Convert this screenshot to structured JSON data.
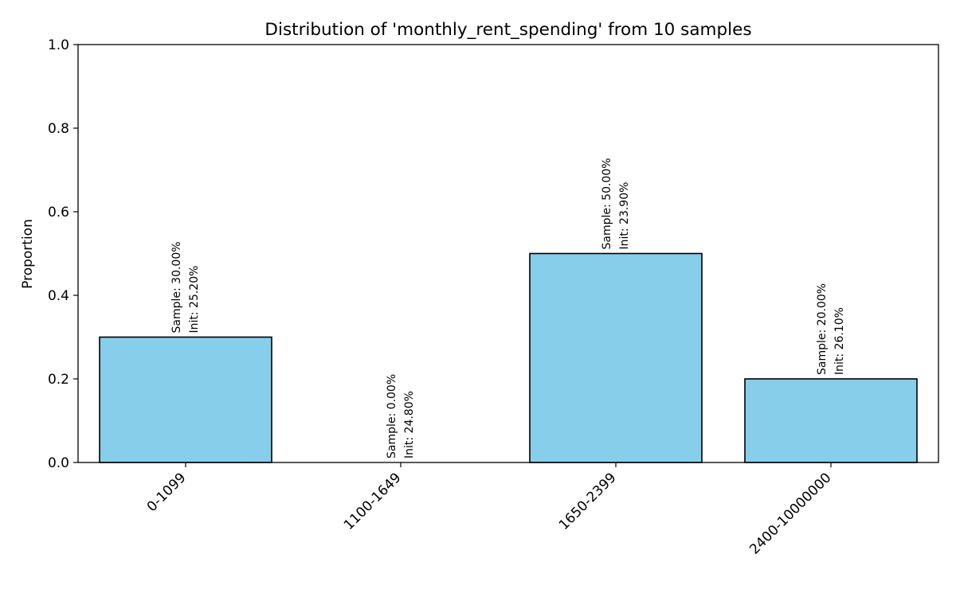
{
  "chart_data": {
    "type": "bar",
    "title": "Distribution of 'monthly_rent_spending' from 10 samples",
    "xlabel": "",
    "ylabel": "Proportion",
    "ylim": [
      0,
      1.0
    ],
    "yticks": [
      "0.0",
      "0.2",
      "0.4",
      "0.6",
      "0.8",
      "1.0"
    ],
    "categories": [
      "0-1099",
      "1100-1649",
      "1650-2399",
      "2400-10000000"
    ],
    "values": [
      0.3,
      0.0,
      0.5,
      0.2
    ],
    "labels": [
      {
        "sample": "Sample: 30.00%",
        "init": "Init: 25.20%"
      },
      {
        "sample": "Sample: 0.00%",
        "init": "Init: 24.80%"
      },
      {
        "sample": "Sample: 50.00%",
        "init": "Init: 23.90%"
      },
      {
        "sample": "Sample: 20.00%",
        "init": "Init: 26.10%"
      }
    ],
    "bar_color": "#87CEEB",
    "edge_color": "#000000",
    "grid": false,
    "legend": "none"
  }
}
